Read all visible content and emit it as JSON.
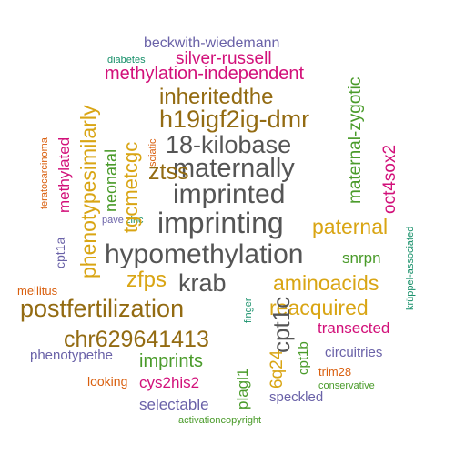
{
  "palette": {
    "gray": "#555555",
    "gold": "#D9A514",
    "brown": "#936B12",
    "green": "#4A9B2A",
    "teal": "#18906A",
    "magenta": "#D2117A",
    "purple": "#6A62A8",
    "orange": "#D95F0E"
  },
  "words": [
    "imprinting",
    "hypomethylation",
    "imprinted",
    "maternally",
    "18-kilobase",
    "h19igf2ig-dmr",
    "inheritedthe",
    "ztss",
    "krab",
    "postfertilization",
    "cpt1c",
    "chr629641413",
    "zfps",
    "aminoacids",
    "reacquired",
    "paternal",
    "phenotypesimilarly",
    "tgcmetcgc",
    "neonatal",
    "methylation-independent",
    "silver-russell",
    "beckwith-wiedemann",
    "diabetes",
    "maternal-zygotic",
    "oct4sox2",
    "snrpn",
    "methylated",
    "teratocarcinoma",
    "cpt1a",
    "pave",
    "zinc",
    "sciatic",
    "mellitus",
    "finger",
    "krüppel-associated",
    "transected",
    "6q24",
    "cpt1b",
    "plagl1",
    "imprints",
    "phenotypethe",
    "circuitries",
    "trim28",
    "conservative",
    "looking",
    "cys2his2",
    "selectable",
    "speckled",
    "activationcopyright"
  ]
}
